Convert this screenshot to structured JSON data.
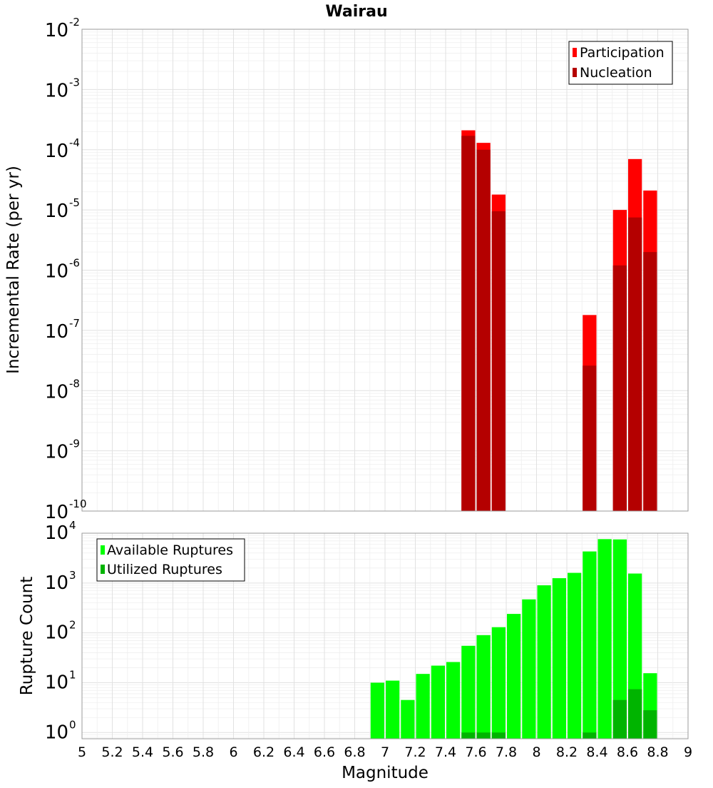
{
  "chart_data": [
    {
      "type": "bar",
      "title": "Wairau",
      "xlabel": "",
      "ylabel": "Incremental Rate (per yr)",
      "yscale": "log",
      "xlim": [
        5,
        9
      ],
      "ylim": [
        1e-10,
        0.01
      ],
      "ytick_labels": [
        {
          "base": "10",
          "exp": "-10"
        },
        {
          "base": "10",
          "exp": "-9"
        },
        {
          "base": "10",
          "exp": "-8"
        },
        {
          "base": "10",
          "exp": "-7"
        },
        {
          "base": "10",
          "exp": "-6"
        },
        {
          "base": "10",
          "exp": "-5"
        },
        {
          "base": "10",
          "exp": "-4"
        },
        {
          "base": "10",
          "exp": "-3"
        },
        {
          "base": "10",
          "exp": "-2"
        }
      ],
      "grid": true,
      "legend_position": "top-right",
      "series": [
        {
          "name": "Participation",
          "color": "#ff0000",
          "x": [
            7.55,
            7.65,
            7.75,
            8.35,
            8.55,
            8.65,
            8.75
          ],
          "values": [
            0.00021,
            0.00013,
            1.8e-05,
            1.8e-07,
            1e-05,
            7e-05,
            2.1e-05
          ]
        },
        {
          "name": "Nucleation",
          "color": "#b40000",
          "x": [
            7.55,
            7.65,
            7.75,
            8.35,
            8.55,
            8.65,
            8.75
          ],
          "values": [
            0.00017,
            0.0001,
            9.5e-06,
            2.6e-08,
            1.2e-06,
            7.5e-06,
            2e-06
          ]
        }
      ]
    },
    {
      "type": "bar",
      "title": "",
      "xlabel": "Magnitude",
      "ylabel": "Rupture Count",
      "yscale": "log",
      "xlim": [
        5,
        9
      ],
      "ylim": [
        0.75,
        10000
      ],
      "ytick_labels": [
        {
          "base": "10",
          "exp": "0"
        },
        {
          "base": "10",
          "exp": "1"
        },
        {
          "base": "10",
          "exp": "2"
        },
        {
          "base": "10",
          "exp": "3"
        },
        {
          "base": "10",
          "exp": "4"
        }
      ],
      "xtick_labels": [
        "5",
        "5.2",
        "5.4",
        "5.6",
        "5.8",
        "6",
        "6.2",
        "6.4",
        "6.6",
        "6.8",
        "7",
        "7.2",
        "7.4",
        "7.6",
        "7.8",
        "8",
        "8.2",
        "8.4",
        "8.6",
        "8.8",
        "9"
      ],
      "grid": true,
      "legend_position": "top-left",
      "series": [
        {
          "name": "Available Ruptures",
          "color": "#00ff00",
          "x": [
            6.95,
            7.05,
            7.15,
            7.25,
            7.35,
            7.45,
            7.55,
            7.65,
            7.75,
            7.85,
            7.95,
            8.05,
            8.15,
            8.25,
            8.35,
            8.45,
            8.55,
            8.65,
            8.75
          ],
          "values": [
            10,
            11,
            4.5,
            15,
            22,
            26,
            55,
            90,
            130,
            240,
            470,
            900,
            1250,
            1600,
            4300,
            7600,
            7500,
            1550,
            15.5
          ]
        },
        {
          "name": "Utilized Ruptures",
          "color": "#00b400",
          "x": [
            7.55,
            7.65,
            7.75,
            8.35,
            8.55,
            8.65,
            8.75
          ],
          "values": [
            1,
            1,
            1,
            1,
            4.5,
            7.4,
            2.8
          ]
        }
      ]
    }
  ]
}
